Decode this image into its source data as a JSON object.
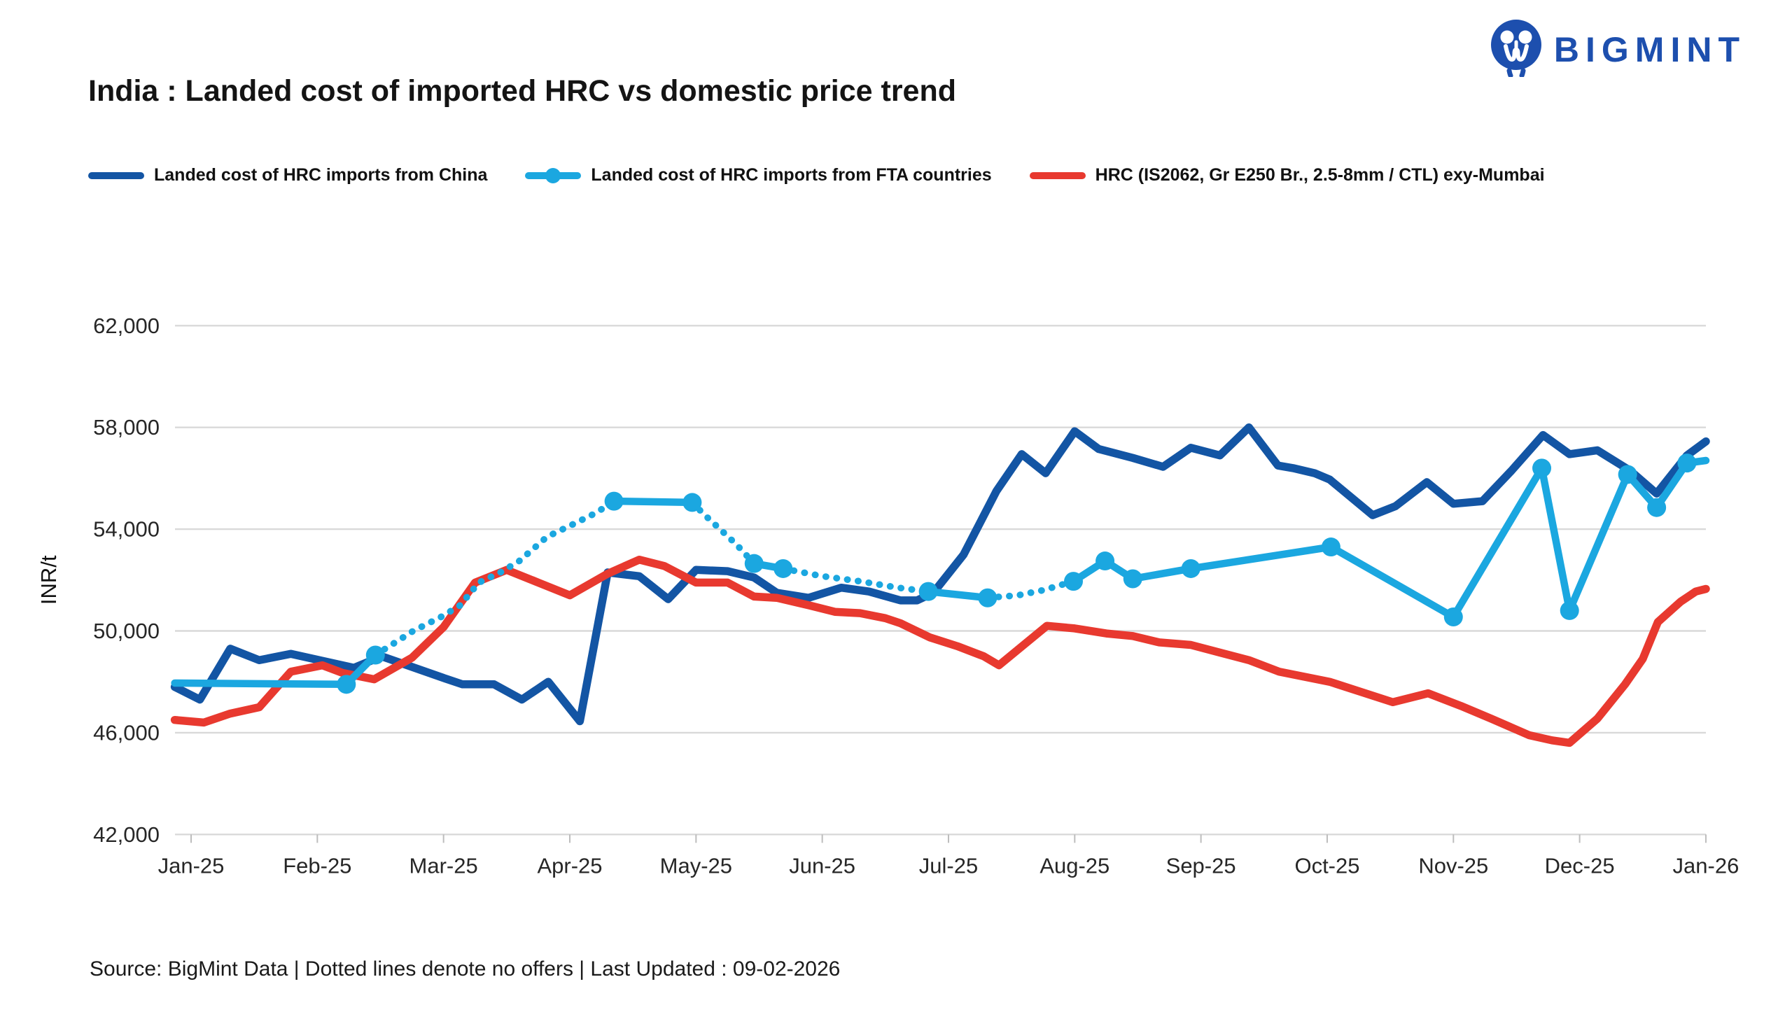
{
  "header": {
    "title": "India : Landed cost of imported HRC vs domestic price trend",
    "brand": "BIGMINT"
  },
  "footer": {
    "text": "Source: BigMint Data | Dotted lines denote no offers | Last Updated : 09-02-2026"
  },
  "colors": {
    "china": "#1355a4",
    "fta": "#1ba7e0",
    "mumbai": "#e8392f",
    "brand_blue": "#1d4fae",
    "grid": "#d9d9d9",
    "axis": "#bdbdbd",
    "tick_text": "#262626",
    "title_text": "#141414"
  },
  "chart_data": {
    "type": "line",
    "title": "India : Landed cost of imported HRC vs domestic price trend",
    "xlabel": "",
    "ylabel": "INR/t",
    "ylim": [
      42000,
      62000
    ],
    "yticks": [
      42000,
      46000,
      50000,
      54000,
      58000,
      62000
    ],
    "x_tick_labels": [
      "Jan-25",
      "Feb-25",
      "Mar-25",
      "Apr-25",
      "May-25",
      "Jun-25",
      "Jul-25",
      "Aug-25",
      "Sep-25",
      "Oct-25",
      "Nov-25",
      "Dec-25",
      "Jan-26"
    ],
    "x_unit": "months from Jan-25",
    "grid": "horizontal",
    "legend_position": "top",
    "dotted_meaning": "Dotted lines denote no offers",
    "series": [
      {
        "name": "Landed cost of HRC imports from China",
        "color": "#1355a4",
        "style": "solid",
        "points": [
          [
            -0.13,
            47800
          ],
          [
            0.07,
            47300
          ],
          [
            0.31,
            49300
          ],
          [
            0.54,
            48850
          ],
          [
            0.79,
            49100
          ],
          [
            1.29,
            48550
          ],
          [
            1.51,
            49000
          ],
          [
            2.03,
            48100
          ],
          [
            2.15,
            47900
          ],
          [
            2.4,
            47900
          ],
          [
            2.62,
            47300
          ],
          [
            2.83,
            48000
          ],
          [
            3.08,
            46450
          ],
          [
            3.3,
            52300
          ],
          [
            3.55,
            52150
          ],
          [
            3.78,
            51250
          ],
          [
            4.0,
            52400
          ],
          [
            4.25,
            52350
          ],
          [
            4.46,
            52100
          ],
          [
            4.64,
            51500
          ],
          [
            4.89,
            51300
          ],
          [
            5.15,
            51700
          ],
          [
            5.37,
            51550
          ],
          [
            5.62,
            51200
          ],
          [
            5.75,
            51200
          ],
          [
            5.88,
            51500
          ],
          [
            6.12,
            53000
          ],
          [
            6.38,
            55500
          ],
          [
            6.58,
            56950
          ],
          [
            6.77,
            56200
          ],
          [
            7.0,
            57850
          ],
          [
            7.19,
            57150
          ],
          [
            7.46,
            56800
          ],
          [
            7.7,
            56450
          ],
          [
            7.92,
            57200
          ],
          [
            8.15,
            56900
          ],
          [
            8.38,
            58000
          ],
          [
            8.61,
            56500
          ],
          [
            8.73,
            56400
          ],
          [
            8.9,
            56200
          ],
          [
            9.02,
            55950
          ],
          [
            9.36,
            54550
          ],
          [
            9.54,
            54900
          ],
          [
            9.79,
            55850
          ],
          [
            10.0,
            55000
          ],
          [
            10.23,
            55100
          ],
          [
            10.46,
            56300
          ],
          [
            10.71,
            57700
          ],
          [
            10.92,
            56950
          ],
          [
            11.14,
            57100
          ],
          [
            11.4,
            56300
          ],
          [
            11.61,
            55400
          ],
          [
            11.85,
            56900
          ],
          [
            12.0,
            57450
          ]
        ]
      },
      {
        "name": "Landed cost of HRC imports from FTA countries",
        "color": "#1ba7e0",
        "style": "solid-with-dotted-gaps",
        "segments": [
          {
            "style": "solid",
            "points": [
              [
                -0.13,
                47950
              ],
              [
                1.23,
                47900
              ]
            ]
          },
          {
            "style": "solid",
            "points": [
              [
                1.23,
                47900
              ],
              [
                1.46,
                49050
              ]
            ]
          },
          {
            "style": "dotted",
            "points": [
              [
                1.46,
                49050
              ],
              [
                1.76,
                50000
              ],
              [
                1.98,
                50550
              ],
              [
                2.13,
                51000
              ],
              [
                2.28,
                51900
              ],
              [
                2.45,
                52300
              ],
              [
                2.6,
                52750
              ],
              [
                2.82,
                53700
              ],
              [
                3.05,
                54250
              ],
              [
                3.21,
                54650
              ],
              [
                3.35,
                55100
              ]
            ]
          },
          {
            "style": "solid",
            "points": [
              [
                3.35,
                55100
              ],
              [
                3.97,
                55050
              ]
            ]
          },
          {
            "style": "dotted",
            "points": [
              [
                3.97,
                55050
              ],
              [
                4.06,
                54600
              ],
              [
                4.19,
                54000
              ],
              [
                4.32,
                53400
              ],
              [
                4.46,
                52650
              ]
            ]
          },
          {
            "style": "solid",
            "points": [
              [
                4.46,
                52650
              ],
              [
                4.69,
                52450
              ]
            ]
          },
          {
            "style": "dotted",
            "points": [
              [
                4.69,
                52450
              ],
              [
                5.0,
                52150
              ],
              [
                5.3,
                51950
              ],
              [
                5.6,
                51700
              ],
              [
                5.84,
                51550
              ]
            ]
          },
          {
            "style": "solid",
            "points": [
              [
                5.84,
                51550
              ],
              [
                6.31,
                51300
              ]
            ]
          },
          {
            "style": "dotted",
            "points": [
              [
                6.31,
                51300
              ],
              [
                6.55,
                51400
              ],
              [
                6.75,
                51600
              ],
              [
                6.99,
                51950
              ]
            ]
          },
          {
            "style": "solid",
            "points": [
              [
                6.99,
                51950
              ],
              [
                7.24,
                52750
              ],
              [
                7.46,
                52050
              ],
              [
                7.92,
                52450
              ],
              [
                9.03,
                53300
              ],
              [
                10.0,
                50550
              ],
              [
                10.7,
                56400
              ],
              [
                10.92,
                50800
              ],
              [
                11.38,
                56150
              ],
              [
                11.61,
                54850
              ],
              [
                11.85,
                56600
              ],
              [
                12.0,
                56700
              ]
            ]
          }
        ],
        "markers": [
          [
            1.23,
            47900
          ],
          [
            1.46,
            49050
          ],
          [
            3.35,
            55100
          ],
          [
            3.97,
            55050
          ],
          [
            4.46,
            52650
          ],
          [
            4.69,
            52450
          ],
          [
            5.84,
            51550
          ],
          [
            6.31,
            51300
          ],
          [
            6.99,
            51950
          ],
          [
            7.24,
            52750
          ],
          [
            7.46,
            52050
          ],
          [
            7.92,
            52450
          ],
          [
            9.03,
            53300
          ],
          [
            10.0,
            50550
          ],
          [
            10.7,
            56400
          ],
          [
            10.92,
            50800
          ],
          [
            11.38,
            56150
          ],
          [
            11.61,
            54850
          ],
          [
            11.85,
            56600
          ]
        ]
      },
      {
        "name": "HRC (IS2062, Gr E250 Br., 2.5-8mm / CTL) exy-Mumbai",
        "color": "#e8392f",
        "style": "solid",
        "points": [
          [
            -0.13,
            46500
          ],
          [
            0.1,
            46400
          ],
          [
            0.31,
            46750
          ],
          [
            0.54,
            47000
          ],
          [
            0.79,
            48400
          ],
          [
            1.04,
            48650
          ],
          [
            1.2,
            48350
          ],
          [
            1.45,
            48100
          ],
          [
            1.75,
            48950
          ],
          [
            2.0,
            50150
          ],
          [
            2.25,
            51900
          ],
          [
            2.5,
            52400
          ],
          [
            2.75,
            51900
          ],
          [
            3.0,
            51400
          ],
          [
            3.3,
            52250
          ],
          [
            3.55,
            52800
          ],
          [
            3.75,
            52550
          ],
          [
            4.0,
            51900
          ],
          [
            4.25,
            51900
          ],
          [
            4.46,
            51350
          ],
          [
            4.64,
            51300
          ],
          [
            4.9,
            51000
          ],
          [
            5.1,
            50750
          ],
          [
            5.3,
            50700
          ],
          [
            5.5,
            50500
          ],
          [
            5.62,
            50300
          ],
          [
            5.85,
            49750
          ],
          [
            6.07,
            49400
          ],
          [
            6.28,
            49000
          ],
          [
            6.4,
            48650
          ],
          [
            6.78,
            50200
          ],
          [
            7.0,
            50100
          ],
          [
            7.25,
            49900
          ],
          [
            7.46,
            49800
          ],
          [
            7.67,
            49550
          ],
          [
            7.92,
            49450
          ],
          [
            8.15,
            49150
          ],
          [
            8.38,
            48850
          ],
          [
            8.62,
            48400
          ],
          [
            9.02,
            48000
          ],
          [
            9.52,
            47200
          ],
          [
            9.8,
            47550
          ],
          [
            10.06,
            47050
          ],
          [
            10.3,
            46550
          ],
          [
            10.6,
            45900
          ],
          [
            10.78,
            45700
          ],
          [
            10.92,
            45600
          ],
          [
            11.14,
            46550
          ],
          [
            11.36,
            47900
          ],
          [
            11.5,
            48900
          ],
          [
            11.62,
            50350
          ],
          [
            11.8,
            51150
          ],
          [
            11.92,
            51550
          ],
          [
            12.0,
            51650
          ]
        ]
      }
    ]
  }
}
